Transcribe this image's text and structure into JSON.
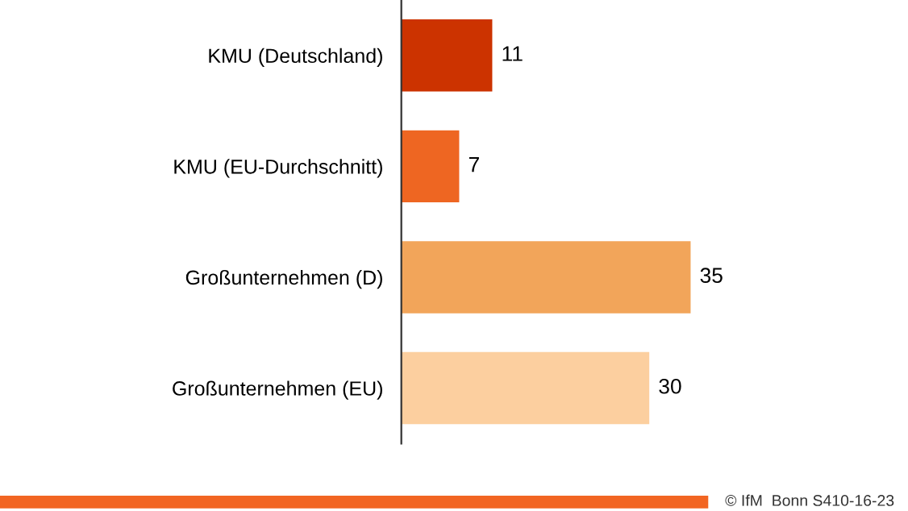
{
  "chart_data": {
    "type": "bar",
    "orientation": "horizontal",
    "categories": [
      "KMU (Deutschland)",
      "KMU (EU-Durchschnitt)",
      "Großunternehmen (D)",
      "Großunternehmen (EU)"
    ],
    "values": [
      11,
      7,
      35,
      30
    ],
    "colors": [
      "#cc3300",
      "#ee6622",
      "#f2a55a",
      "#fccf9f"
    ],
    "data_labels": true,
    "tick_labels": "y",
    "grid": false,
    "legend": false,
    "annotations": [
      "© IfM  Bonn S410-16-23"
    ]
  }
}
